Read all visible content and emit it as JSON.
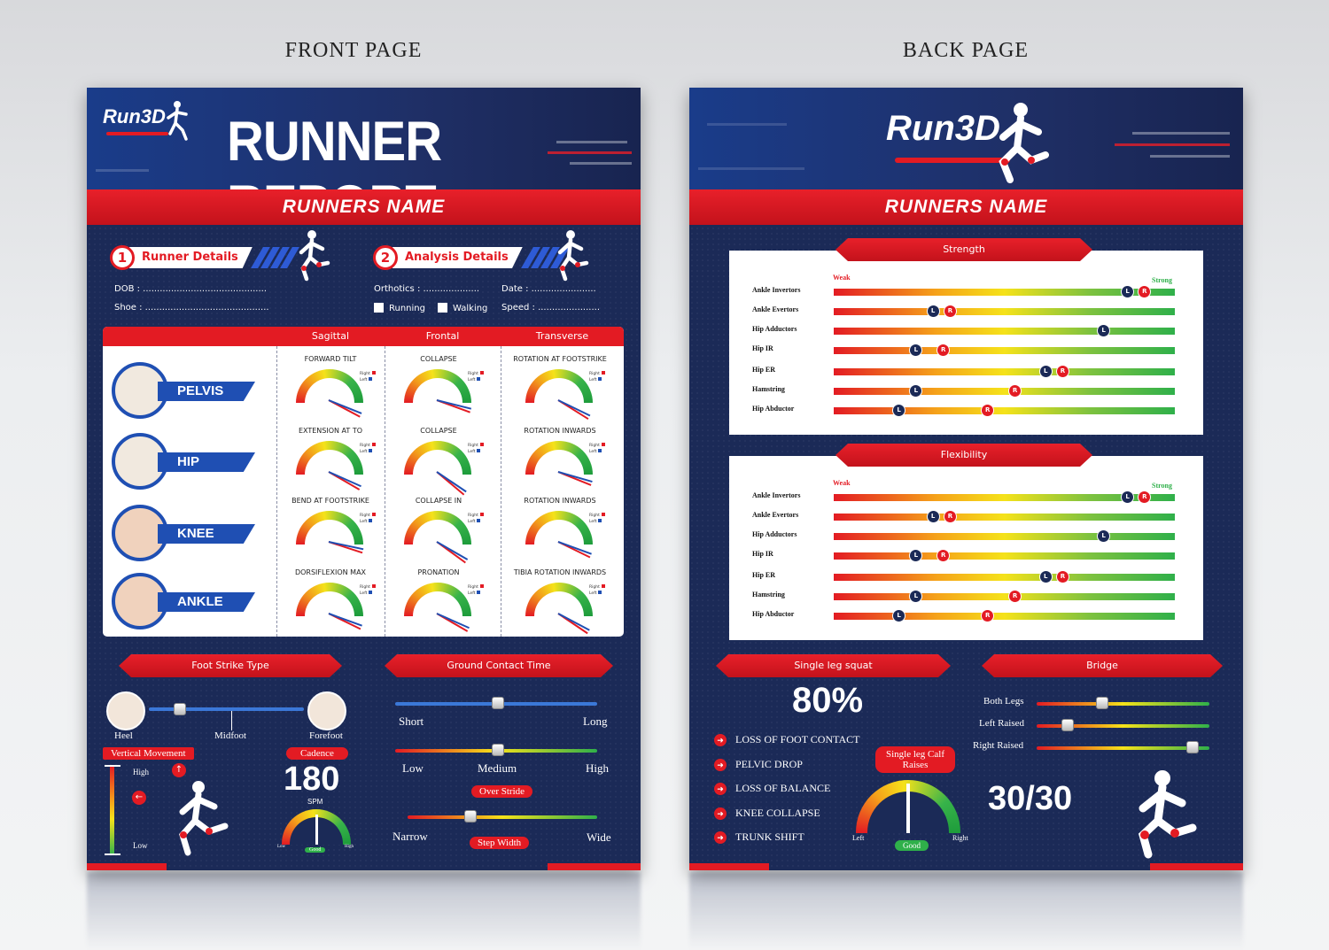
{
  "captions": {
    "front": "FRONT PAGE",
    "back": "BACK PAGE"
  },
  "brand": {
    "logo": "Run3D",
    "accent": "#e31b23",
    "navy": "#1b2a57",
    "blue": "#1f4fb3"
  },
  "front": {
    "title": "RUNNER REPORT",
    "runners_name": "RUNNERS NAME",
    "runner_details": {
      "num": "1",
      "label": "Runner Details",
      "dob": "DOB : ............................................",
      "shoe": "Shoe : ............................................"
    },
    "analysis_details": {
      "num": "2",
      "label": "Analysis Details",
      "orthotics": "Orthotics : ....................",
      "date": "Date : .......................",
      "running": "Running",
      "walking": "Walking",
      "speed": "Speed : ......................"
    },
    "table": {
      "columns": [
        "Sagittal",
        "Frontal",
        "Transverse"
      ],
      "joints": [
        "PELVIS",
        "HIP",
        "KNEE",
        "ANKLE"
      ],
      "legend_right": "Right",
      "legend_left": "Left",
      "gauges": [
        [
          "FORWARD TILT",
          "COLLAPSE",
          "ROTATION AT FOOTSTRIKE"
        ],
        [
          "EXTENSION AT TO",
          "COLLAPSE",
          "ROTATION INWARDS"
        ],
        [
          "BEND AT FOOTSTRIKE",
          "COLLAPSE IN",
          "ROTATION INWARDS"
        ],
        [
          "DORSIFLEXION MAX",
          "PRONATION",
          "TIBIA ROTATION INWARDS"
        ]
      ]
    },
    "foot_strike": {
      "title": "Foot Strike Type",
      "heel": "Heel",
      "midfoot": "Midfoot",
      "forefoot": "Forefoot",
      "position": 0.2
    },
    "vertical_movement": {
      "title": "Vertical Movement",
      "high": "High",
      "low": "Low"
    },
    "cadence": {
      "title": "Cadence",
      "value": "180",
      "unit": "SPM",
      "low": "Low",
      "good": "Good",
      "high": "High"
    },
    "ground_contact": {
      "title": "Ground Contact Time",
      "short": "Short",
      "long": "Long",
      "low": "Low",
      "medium": "Medium",
      "high": "High",
      "over_stride": "Over Stride",
      "narrow": "Narrow",
      "wide": "Wide",
      "step_width": "Step Width"
    }
  },
  "back": {
    "runners_name": "RUNNERS NAME",
    "weak": "Weak",
    "strong": "Strong",
    "strength": {
      "title": "Strength",
      "rows": [
        {
          "label": "Ankle Invertors",
          "L": 0.86,
          "R": 0.91
        },
        {
          "label": "Ankle Evertors",
          "L": 0.29,
          "R": 0.34
        },
        {
          "label": "Hip Adductors",
          "L": 0.79,
          "R": null
        },
        {
          "label": "Hip IR",
          "L": 0.24,
          "R": 0.32
        },
        {
          "label": "Hip ER",
          "L": 0.62,
          "R": 0.67
        },
        {
          "label": "Hamstring",
          "L": 0.24,
          "R": 0.53
        },
        {
          "label": "Hip Abductor",
          "L": 0.19,
          "R": 0.45
        }
      ]
    },
    "flexibility": {
      "title": "Flexibility",
      "rows": [
        {
          "label": "Ankle Invertors",
          "L": 0.86,
          "R": 0.91
        },
        {
          "label": "Ankle Evertors",
          "L": 0.29,
          "R": 0.34
        },
        {
          "label": "Hip Adductors",
          "L": 0.79,
          "R": null
        },
        {
          "label": "Hip IR",
          "L": 0.24,
          "R": 0.32
        },
        {
          "label": "Hip ER",
          "L": 0.62,
          "R": 0.67
        },
        {
          "label": "Hamstring",
          "L": 0.24,
          "R": 0.53
        },
        {
          "label": "Hip Abductor",
          "L": 0.19,
          "R": 0.45
        }
      ]
    },
    "single_leg_squat": {
      "title": "Single leg squat",
      "value": "80%",
      "items": [
        "LOSS OF FOOT CONTACT",
        "PELVIC DROP",
        "LOSS OF BALANCE",
        "KNEE COLLAPSE",
        "TRUNK SHIFT"
      ]
    },
    "calf_raises": {
      "title": "Single leg Calf Raises",
      "left": "Left",
      "right": "Right",
      "good": "Good"
    },
    "bridge": {
      "title": "Bridge",
      "rows": [
        {
          "label": "Both Legs",
          "pos": 0.38
        },
        {
          "label": "Left Raised",
          "pos": 0.18
        },
        {
          "label": "Right Raised",
          "pos": 0.9
        }
      ],
      "score": "30/30"
    }
  }
}
